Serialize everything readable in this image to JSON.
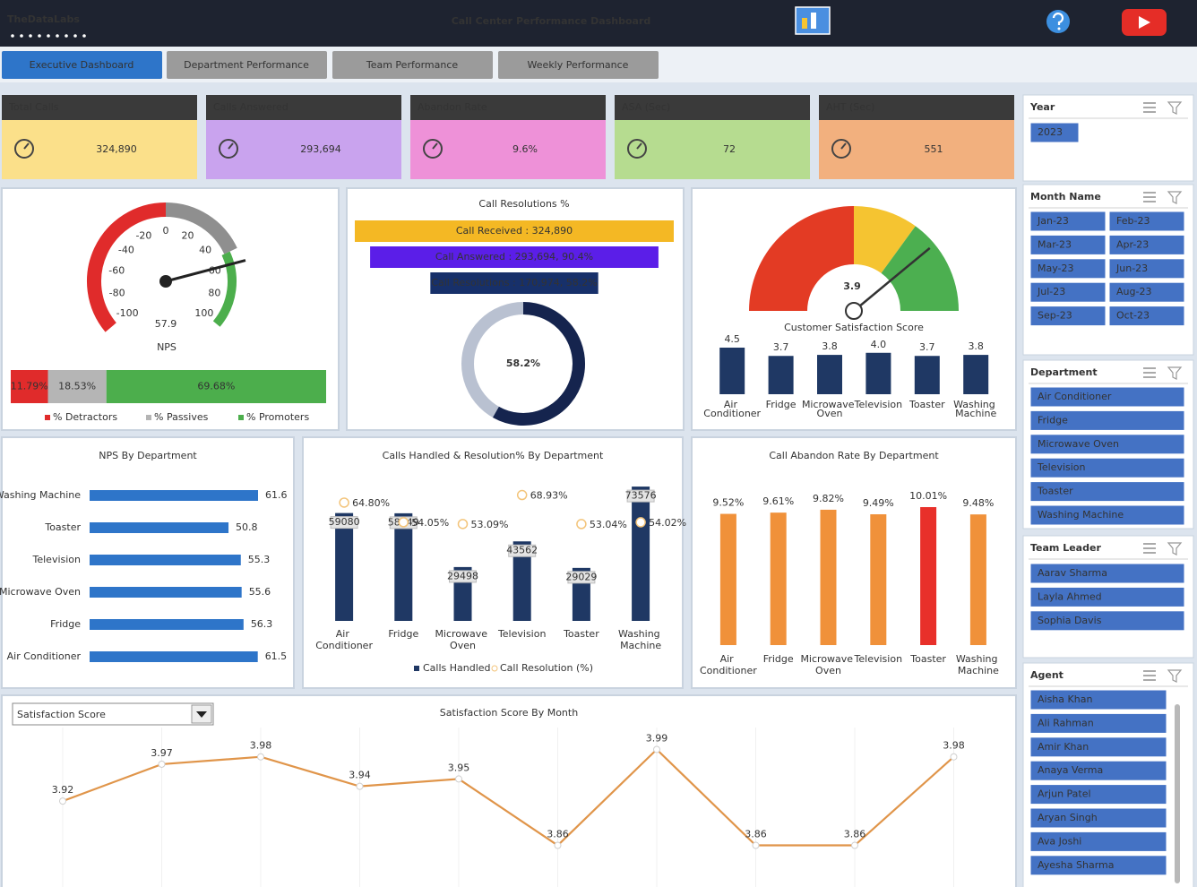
{
  "header": {
    "brand": "TheDataLabs",
    "title": "Call Center Performance Dashboard"
  },
  "tabs": [
    "Executive Dashboard",
    "Department Performance",
    "Team Performance",
    "Weekly Performance"
  ],
  "kpis": [
    {
      "label": "Total Calls",
      "value": "324,890",
      "color": "#fbe08a"
    },
    {
      "label": "Calls Answered",
      "value": "293,694",
      "color": "#c9a3ee"
    },
    {
      "label": "Abandon Rate",
      "value": "9.6%",
      "color": "#ee91d8"
    },
    {
      "label": "ASA (Sec)",
      "value": "72",
      "color": "#b6dc90"
    },
    {
      "label": "AHT (Sec)",
      "value": "551",
      "color": "#f2b07e"
    }
  ],
  "slicers": [
    {
      "title": "Year",
      "items": [
        "2023"
      ]
    },
    {
      "title": "Month Name",
      "items": [
        "Jan-23",
        "Feb-23",
        "Mar-23",
        "Apr-23",
        "May-23",
        "Jun-23",
        "Jul-23",
        "Aug-23",
        "Sep-23",
        "Oct-23"
      ]
    },
    {
      "title": "Department",
      "items": [
        "Air Conditioner",
        "Fridge",
        "Microwave Oven",
        "Television",
        "Toaster",
        "Washing Machine"
      ]
    },
    {
      "title": "Team Leader",
      "items": [
        "Aarav Sharma",
        "Layla Ahmed",
        "Sophia Davis"
      ]
    },
    {
      "title": "Agent",
      "items": [
        "Aisha Khan",
        "Ali Rahman",
        "Amir Khan",
        "Anaya Verma",
        "Arjun Patel",
        "Aryan Singh",
        "Ava Joshi",
        "Ayesha Sharma"
      ]
    }
  ],
  "chart_data": [
    {
      "type": "gauge",
      "label": "NPS",
      "value": 57.9,
      "lim": [
        -100,
        100
      ],
      "ticks": [
        -100,
        -80,
        -60,
        -40,
        -20,
        0,
        20,
        40,
        60,
        80,
        100
      ],
      "bands": [
        {
          "from": -100,
          "to": 0,
          "color": "#e02b2b"
        },
        {
          "from": 0,
          "to": 50,
          "color": "#8f8f8f"
        },
        {
          "from": 50,
          "to": 100,
          "color": "#4cae4c"
        }
      ]
    },
    {
      "type": "stacked",
      "series": [
        {
          "name": "% Detractors",
          "color": "#e02b2b",
          "values": [
            11.79
          ],
          "value_labels": [
            "11.79%"
          ]
        },
        {
          "name": "% Passives",
          "color": "#b5b5b5",
          "values": [
            18.53
          ],
          "value_labels": [
            "18.53%"
          ]
        },
        {
          "name": "% Promoters",
          "color": "#4cae4c",
          "values": [
            69.68
          ],
          "value_labels": [
            "69.68%"
          ]
        }
      ]
    },
    {
      "type": "funnel",
      "title": "Call Resolutions %",
      "values": [
        324890,
        293694,
        170974
      ],
      "value_labels": [
        "Call Received : 324,890",
        "Call Answered : 293,694, 90.4%",
        "Call Resolutions : 170,974, 58.2%"
      ],
      "colors": [
        "#f4b824",
        "#5b1ee8",
        "#17306a"
      ]
    },
    {
      "type": "donut",
      "values": [
        58.2
      ],
      "value_labels": [
        "58.2%"
      ],
      "lim": [
        0,
        100
      ],
      "colors": [
        "#15244e",
        "#b9c1d1"
      ]
    },
    {
      "type": "speedometer",
      "label": "Customer Satisfaction Score",
      "value": 3.9,
      "lim": [
        0,
        5
      ],
      "bands": [
        {
          "from": 0,
          "to": 2.5,
          "color": "#e33b24"
        },
        {
          "from": 2.5,
          "to": 3.5,
          "color": "#f5c431"
        },
        {
          "from": 3.5,
          "to": 5,
          "color": "#4caf50"
        }
      ]
    },
    {
      "type": "bar",
      "categories": [
        "Air Conditioner",
        "Fridge",
        "Microwave Oven",
        "Television",
        "Toaster",
        "Washing Machine"
      ],
      "values": [
        4.5,
        3.7,
        3.8,
        4.0,
        3.7,
        3.8
      ],
      "value_labels": [
        "4.5",
        "3.7",
        "3.8",
        "4.0",
        "3.7",
        "3.8"
      ],
      "color": "#1f3864"
    },
    {
      "type": "hbar",
      "title": "NPS By Department",
      "categories": [
        "Washing Machine",
        "Toaster",
        "Television",
        "Microwave Oven",
        "Fridge",
        "Air Conditioner"
      ],
      "values": [
        61.6,
        50.8,
        55.3,
        55.6,
        56.3,
        61.5
      ],
      "color": "#2e75c9"
    },
    {
      "type": "combo",
      "title": "Calls Handled & Resolution% By Department",
      "categories": [
        "Air Conditioner",
        "Fridge",
        "Microwave Oven",
        "Television",
        "Toaster",
        "Washing Machine"
      ],
      "series": [
        {
          "name": "Calls Handled",
          "color": "#1f3864",
          "values": [
            59080,
            58949,
            29498,
            43562,
            29029,
            73576
          ]
        },
        {
          "name": "Call Resolution (%)",
          "color": "#f3c47a",
          "axis": "y2",
          "values": [
            64.8,
            54.05,
            53.09,
            68.93,
            53.04,
            54.02
          ],
          "value_labels": [
            "64.80%",
            "54.05%",
            "53.09%",
            "68.93%",
            "53.04%",
            "54.02%"
          ]
        }
      ],
      "ylim": [
        0,
        80000
      ],
      "y2lim": [
        0,
        80
      ]
    },
    {
      "type": "bar",
      "title": "Call Abandon Rate By Department",
      "categories": [
        "Air Conditioner",
        "Fridge",
        "Microwave Oven",
        "Television",
        "Toaster",
        "Washing Machine"
      ],
      "values": [
        9.52,
        9.61,
        9.82,
        9.49,
        10.01,
        9.48
      ],
      "value_labels": [
        "9.52%",
        "9.61%",
        "9.82%",
        "9.49%",
        "10.01%",
        "9.48%"
      ],
      "colors": [
        "#f0913a",
        "#f0913a",
        "#f0913a",
        "#f0913a",
        "#e8302a",
        "#f0913a"
      ]
    },
    {
      "type": "line",
      "title": "Satisfaction Score By Month",
      "dropdown": "Satisfaction Score",
      "values": [
        3.92,
        3.97,
        3.98,
        3.94,
        3.95,
        3.86,
        3.99,
        3.86,
        3.86,
        3.98
      ],
      "ylim": [
        3.84,
        4.01
      ],
      "color": "#e0954a"
    }
  ]
}
